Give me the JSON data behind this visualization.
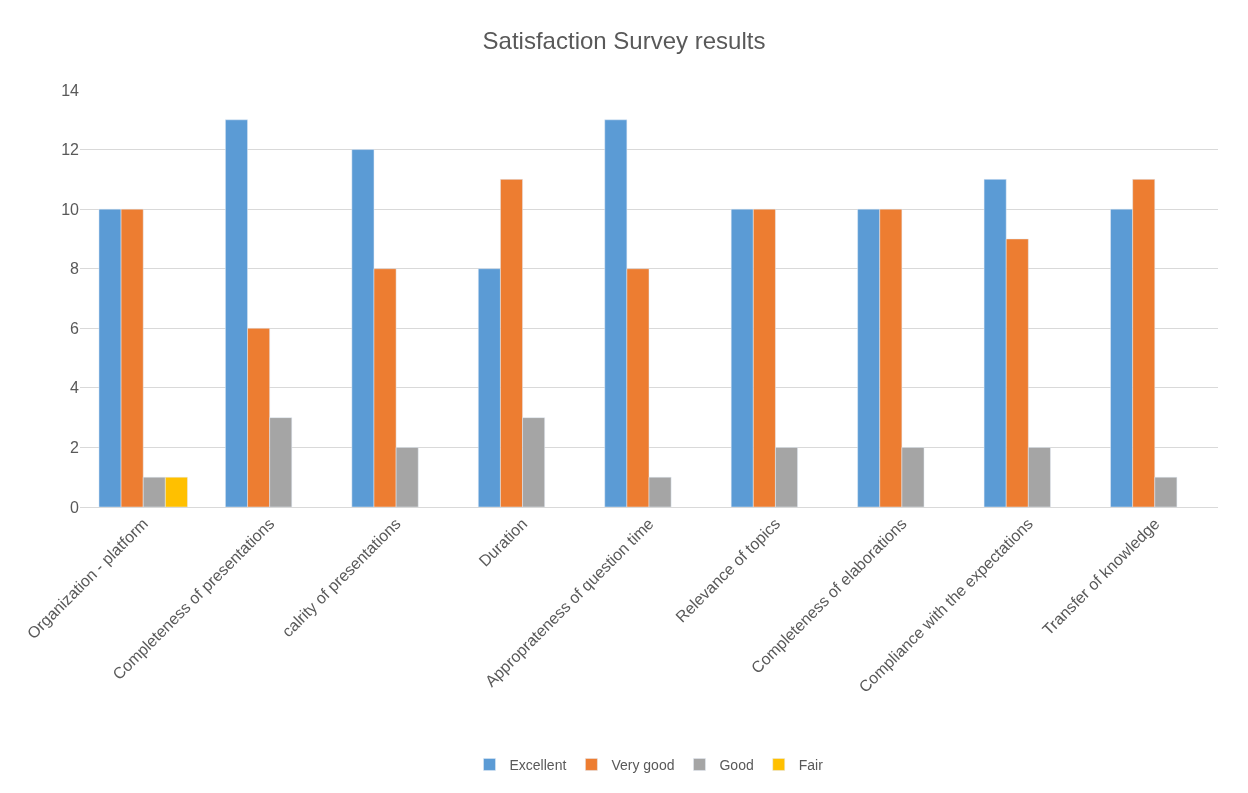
{
  "chart_data": {
    "type": "bar",
    "title": "Satisfaction Survey results",
    "categories": [
      "Organization - platform",
      "Completeness of presentations",
      "calrity of presentations",
      "Duration",
      "Approprateness of question time",
      "Relevance of topics",
      "Completeness of elaborations",
      "Compliance with the expectations",
      "Transfer of knowledge"
    ],
    "series": [
      {
        "name": "Excellent",
        "color": "#5b9bd5",
        "values": [
          10,
          13,
          12,
          8,
          13,
          10,
          10,
          11,
          10
        ]
      },
      {
        "name": "Very good",
        "color": "#ed7d31",
        "values": [
          10,
          6,
          8,
          11,
          8,
          10,
          10,
          9,
          11
        ]
      },
      {
        "name": "Good",
        "color": "#a5a5a5",
        "values": [
          1,
          3,
          2,
          3,
          1,
          2,
          2,
          2,
          1
        ]
      },
      {
        "name": "Fair",
        "color": "#ffc000",
        "values": [
          1,
          null,
          null,
          null,
          null,
          null,
          null,
          null,
          null
        ]
      }
    ],
    "ylim": [
      0,
      14
    ],
    "yticks": [
      0,
      2,
      4,
      6,
      8,
      10,
      12,
      14
    ],
    "grid": "y",
    "legend": "bottom"
  }
}
